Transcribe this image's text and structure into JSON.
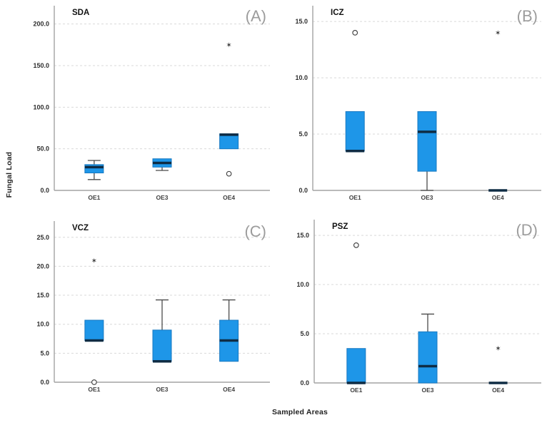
{
  "figure": {
    "y_axis_label": "Fungal Load",
    "x_axis_label": "Sampled Areas",
    "background": "#ffffff"
  },
  "style": {
    "box_fill": "#1e96e8",
    "box_stroke": "#1879c2",
    "median_color": "#0f2c44",
    "whisker_color": "#4a4a4a",
    "gridline_color": "#d9d9d9",
    "axis_color": "#a3a3a3",
    "tick_label_color": "#2e2e2e",
    "category_label_color": "#3f3f3f",
    "title_color": "#111111",
    "corner_label_color": "#9c9c9c",
    "outlier_color": "#3a3a3a",
    "extreme_marker_glyph": "✶",
    "outlier_marker_glyph": "○"
  },
  "chart_data": [
    {
      "id": "A",
      "type": "box",
      "title": "SDA",
      "corner_label": "(A)",
      "categories": [
        "OE1",
        "OE3",
        "OE4"
      ],
      "ylim": [
        0,
        222
      ],
      "yticks": [
        0,
        50,
        100,
        150,
        200
      ],
      "ytick_labels": [
        "0.0",
        "50.0",
        "100.0",
        "150.0",
        "200.0"
      ],
      "boxes": [
        {
          "category": "OE1",
          "whisker_low": 13,
          "q1": 21,
          "median": 28,
          "q3": 31,
          "whisker_high": 36,
          "outliers": [],
          "extreme_outliers": []
        },
        {
          "category": "OE3",
          "whisker_low": 24,
          "q1": 28,
          "median": 33,
          "q3": 38,
          "whisker_high": 38,
          "outliers": [],
          "extreme_outliers": []
        },
        {
          "category": "OE4",
          "whisker_low": 50,
          "q1": 50,
          "median": 67,
          "q3": 68,
          "whisker_high": 68,
          "outliers": [
            20
          ],
          "extreme_outliers": [
            175
          ]
        }
      ]
    },
    {
      "id": "B",
      "type": "box",
      "title": "ICZ",
      "corner_label": "(B)",
      "categories": [
        "OE1",
        "OE3",
        "OE4"
      ],
      "ylim": [
        0,
        16.4
      ],
      "yticks": [
        0,
        5,
        10,
        15
      ],
      "ytick_labels": [
        "0.0",
        "5.0",
        "10.0",
        "15.0"
      ],
      "boxes": [
        {
          "category": "OE1",
          "whisker_low": 3.5,
          "q1": 3.5,
          "median": 3.5,
          "q3": 7,
          "whisker_high": 7,
          "outliers": [
            14
          ],
          "extreme_outliers": []
        },
        {
          "category": "OE3",
          "whisker_low": 0,
          "q1": 1.7,
          "median": 5.2,
          "q3": 7,
          "whisker_high": 7,
          "outliers": [],
          "extreme_outliers": []
        },
        {
          "category": "OE4",
          "whisker_low": 0,
          "q1": 0,
          "median": 0,
          "q3": 0,
          "whisker_high": 0,
          "outliers": [],
          "extreme_outliers": [
            14
          ]
        }
      ]
    },
    {
      "id": "C",
      "type": "box",
      "title": "VCZ",
      "corner_label": "(C)",
      "categories": [
        "OE1",
        "OE3",
        "OE4"
      ],
      "ylim": [
        0,
        27.8
      ],
      "yticks": [
        0,
        5,
        10,
        15,
        20,
        25
      ],
      "ytick_labels": [
        "0.0",
        "5.0",
        "10.0",
        "15.0",
        "20.0",
        "25.0"
      ],
      "boxes": [
        {
          "category": "OE1",
          "whisker_low": 7.2,
          "q1": 7.2,
          "median": 7.2,
          "q3": 10.7,
          "whisker_high": 10.7,
          "outliers": [
            0
          ],
          "extreme_outliers": [
            21
          ]
        },
        {
          "category": "OE3",
          "whisker_low": 3.6,
          "q1": 3.6,
          "median": 3.6,
          "q3": 9,
          "whisker_high": 14.2,
          "outliers": [],
          "extreme_outliers": []
        },
        {
          "category": "OE4",
          "whisker_low": 3.6,
          "q1": 3.6,
          "median": 7.2,
          "q3": 10.7,
          "whisker_high": 14.2,
          "outliers": [],
          "extreme_outliers": []
        }
      ]
    },
    {
      "id": "D",
      "type": "box",
      "title": "PSZ",
      "corner_label": "(D)",
      "categories": [
        "OE1",
        "OE3",
        "OE4"
      ],
      "ylim": [
        0,
        16.6
      ],
      "yticks": [
        0,
        5,
        10,
        15
      ],
      "ytick_labels": [
        "0.0",
        "5.0",
        "10.0",
        "15.0"
      ],
      "boxes": [
        {
          "category": "OE1",
          "whisker_low": 0,
          "q1": 0,
          "median": 0,
          "q3": 3.5,
          "whisker_high": 3.5,
          "outliers": [
            14
          ],
          "extreme_outliers": []
        },
        {
          "category": "OE3",
          "whisker_low": 0,
          "q1": 0,
          "median": 1.7,
          "q3": 5.2,
          "whisker_high": 7,
          "outliers": [],
          "extreme_outliers": []
        },
        {
          "category": "OE4",
          "whisker_low": 0,
          "q1": 0,
          "median": 0,
          "q3": 0,
          "whisker_high": 0,
          "outliers": [],
          "extreme_outliers": [
            3.5
          ]
        }
      ]
    }
  ]
}
